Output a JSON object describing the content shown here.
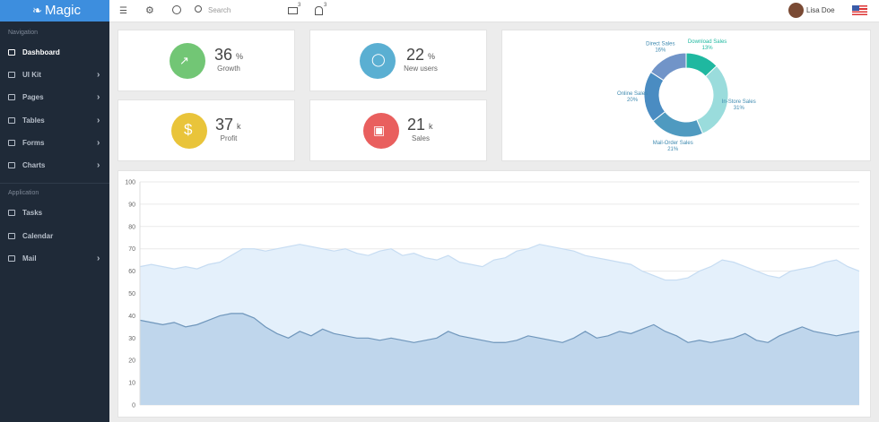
{
  "sidebar": {
    "brand": "Magic",
    "sections": [
      {
        "title": "Navigation",
        "items": [
          "Dashboard",
          "UI Kit",
          "Pages",
          "Tables",
          "Forms",
          "Charts"
        ]
      },
      {
        "title": "Application",
        "items": [
          "Tasks",
          "Calendar",
          "Mail"
        ]
      }
    ]
  },
  "topbar": {
    "search_placeholder": "Search",
    "mail_badge": 3,
    "notification_badge": 3,
    "user": "Lisa Doe"
  },
  "stats": [
    {
      "value": 36,
      "unit": "%",
      "label": "Growth",
      "color": "#72c675"
    },
    {
      "value": 22,
      "unit": "%",
      "label": "New users",
      "color": "#5aafd2"
    },
    {
      "value": 37,
      "unit": "k",
      "label": "Profit",
      "color": "#e9c43a"
    },
    {
      "value": 21,
      "unit": "k",
      "label": "Sales",
      "color": "#e95f5e"
    }
  ],
  "chart_data": [
    {
      "type": "donut",
      "categories": [
        "Download Sales",
        "In-Store Sales",
        "Mail-Order Sales",
        "Online Sales",
        "Direct Sales"
      ],
      "values": [
        13,
        31,
        21,
        20,
        16
      ],
      "value_labels": [
        "13%",
        "31%",
        "21%",
        "20%",
        "16%"
      ],
      "colors": [
        "#1fb8a0",
        "#9adcdc",
        "#4f9ac0",
        "#4a8cc2",
        "#7194c8"
      ]
    },
    {
      "type": "area",
      "series": [
        {
          "color": "#e4f0fb",
          "values": [
            62,
            63,
            62,
            61,
            62,
            61,
            63,
            64,
            67,
            70,
            70,
            69,
            70,
            71,
            72,
            71,
            70,
            69,
            70,
            68,
            67,
            69,
            70,
            67,
            68,
            66,
            65,
            67,
            64,
            63,
            62,
            65,
            66,
            69,
            70,
            72,
            71,
            70,
            69,
            67,
            66,
            65,
            64,
            63,
            60,
            58,
            56,
            56,
            57,
            60,
            62,
            65,
            64,
            62,
            60,
            58,
            57,
            60,
            61,
            62,
            64,
            65,
            62,
            60
          ]
        },
        {
          "color": "#bfd6ec",
          "values": [
            38,
            37,
            36,
            37,
            35,
            36,
            38,
            40,
            41,
            41,
            39,
            35,
            32,
            30,
            33,
            31,
            34,
            32,
            31,
            30,
            30,
            29,
            30,
            29,
            28,
            29,
            30,
            33,
            31,
            30,
            29,
            28,
            28,
            29,
            31,
            30,
            29,
            28,
            30,
            33,
            30,
            31,
            33,
            32,
            34,
            36,
            33,
            31,
            28,
            29,
            28,
            29,
            30,
            32,
            29,
            28,
            31,
            33,
            35,
            33,
            32,
            31,
            32,
            33
          ]
        }
      ],
      "ylim": [
        0,
        100
      ],
      "yticks": [
        0,
        10,
        20,
        30,
        40,
        50,
        60,
        70,
        80,
        90,
        100
      ],
      "grid": true
    }
  ]
}
